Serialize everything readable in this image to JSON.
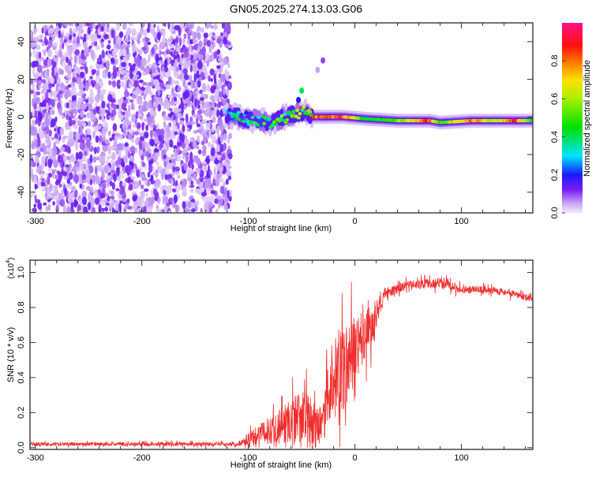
{
  "title": "GN05.2025.274.13.03.G06",
  "chart_data": [
    {
      "type": "heatmap",
      "name": "spectrogram",
      "xlabel": "Height of straight line (km)",
      "ylabel": "Frequency (Hz)",
      "xlim": [
        -305,
        167
      ],
      "ylim": [
        -51,
        50
      ],
      "xticks": [
        -300,
        -200,
        -100,
        0,
        100
      ],
      "yticks": [
        -40,
        -20,
        0,
        20,
        40
      ],
      "colorbar": {
        "label": "Normalized spectral amplitude",
        "ticks": [
          0.0,
          0.2,
          0.4,
          0.6,
          0.8
        ],
        "range": [
          0,
          1
        ]
      },
      "noise_region": {
        "x_range": [
          -305,
          -120
        ],
        "freq_range": [
          -51,
          50
        ],
        "amplitude": 0.1
      },
      "ridge": [
        {
          "x": -120,
          "f": 1,
          "amp": 0.3
        },
        {
          "x": -100,
          "f": -1,
          "amp": 0.4
        },
        {
          "x": -80,
          "f": -3,
          "amp": 0.45
        },
        {
          "x": -60,
          "f": 1,
          "amp": 0.5
        },
        {
          "x": -45,
          "f": 3,
          "amp": 0.75
        },
        {
          "x": -40,
          "f": 0,
          "amp": 0.85
        },
        {
          "x": -10,
          "f": 0,
          "amp": 0.85
        },
        {
          "x": 10,
          "f": -1,
          "amp": 0.45
        },
        {
          "x": 40,
          "f": -2,
          "amp": 0.55
        },
        {
          "x": 70,
          "f": -2,
          "amp": 0.9
        },
        {
          "x": 80,
          "f": -3,
          "amp": 0.5
        },
        {
          "x": 110,
          "f": -2,
          "amp": 0.85
        },
        {
          "x": 130,
          "f": -2,
          "amp": 0.6
        },
        {
          "x": 150,
          "f": -2,
          "amp": 0.9
        },
        {
          "x": 167,
          "f": -2,
          "amp": 0.5
        }
      ],
      "spurs": [
        {
          "x": -50,
          "f": 14,
          "amp": 0.4
        },
        {
          "x": -53,
          "f": 9,
          "amp": 0.2
        },
        {
          "x": -30,
          "f": 30,
          "amp": 0.1
        },
        {
          "x": -35,
          "f": 25,
          "amp": 0.05
        }
      ]
    },
    {
      "type": "line",
      "name": "snr",
      "xlabel": "Height of straight line (km)",
      "ylabel": "SNR (10 * v/v)",
      "yscale_label": "(x10",
      "yscale_exp": "4",
      "xlim": [
        -305,
        167
      ],
      "ylim": [
        -0.01,
        1.07
      ],
      "xticks": [
        -300,
        -200,
        -100,
        0,
        100
      ],
      "yticks": [
        0.0,
        0.2,
        0.4,
        0.6,
        0.8,
        1.0
      ],
      "color": "#ee2e2e",
      "envelope": [
        {
          "x": -305,
          "mean": 0.02,
          "noise": 0.012
        },
        {
          "x": -110,
          "mean": 0.02,
          "noise": 0.015
        },
        {
          "x": -100,
          "mean": 0.05,
          "noise": 0.04
        },
        {
          "x": -80,
          "mean": 0.1,
          "noise": 0.1
        },
        {
          "x": -50,
          "mean": 0.18,
          "noise": 0.2
        },
        {
          "x": -30,
          "mean": 0.12,
          "noise": 0.12
        },
        {
          "x": -25,
          "mean": 0.35,
          "noise": 0.3
        },
        {
          "x": -10,
          "mean": 0.45,
          "noise": 0.3
        },
        {
          "x": 5,
          "mean": 0.6,
          "noise": 0.25
        },
        {
          "x": 18,
          "mean": 0.72,
          "noise": 0.12
        },
        {
          "x": 28,
          "mean": 0.88,
          "noise": 0.04
        },
        {
          "x": 50,
          "mean": 0.93,
          "noise": 0.03
        },
        {
          "x": 85,
          "mean": 0.94,
          "noise": 0.04
        },
        {
          "x": 100,
          "mean": 0.9,
          "noise": 0.03
        },
        {
          "x": 130,
          "mean": 0.9,
          "noise": 0.025
        },
        {
          "x": 167,
          "mean": 0.85,
          "noise": 0.025
        }
      ]
    }
  ]
}
